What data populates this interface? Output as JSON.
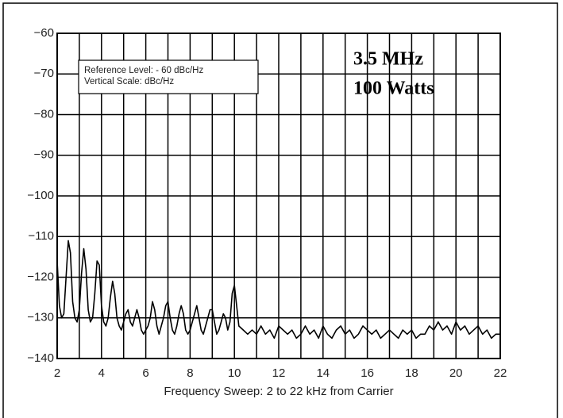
{
  "chart_data": {
    "type": "line",
    "xlabel": "Frequency Sweep: 2 to 22 kHz from Carrier",
    "annotations": [
      "3.5 MHz",
      "100 Watts"
    ],
    "info_box": [
      "Reference Level: - 60 dBc/Hz",
      "Vertical Scale: dBc/Hz"
    ],
    "color": "#000000",
    "grid": true,
    "xlim": [
      2,
      22
    ],
    "ylim": [
      -140,
      -60
    ],
    "xticks": [
      2,
      4,
      6,
      8,
      10,
      12,
      14,
      16,
      18,
      20,
      22
    ],
    "x_minor_ticks": [
      3,
      5,
      7,
      9,
      11,
      13,
      15,
      17,
      19,
      21
    ],
    "yticks": [
      {
        "value": -60,
        "label": "−60"
      },
      {
        "value": -70,
        "label": "−70"
      },
      {
        "value": -80,
        "label": "−80"
      },
      {
        "value": -90,
        "label": "−90"
      },
      {
        "value": -100,
        "label": "−100"
      },
      {
        "value": -110,
        "label": "−110"
      },
      {
        "value": -120,
        "label": "−120"
      },
      {
        "value": -130,
        "label": "−130"
      },
      {
        "value": -140,
        "label": "−140"
      }
    ],
    "x": [
      2.0,
      2.1,
      2.2,
      2.3,
      2.4,
      2.5,
      2.6,
      2.7,
      2.8,
      2.9,
      3.0,
      3.1,
      3.2,
      3.3,
      3.4,
      3.5,
      3.6,
      3.7,
      3.8,
      3.9,
      4.0,
      4.1,
      4.2,
      4.3,
      4.4,
      4.5,
      4.6,
      4.7,
      4.8,
      4.9,
      5.0,
      5.1,
      5.2,
      5.3,
      5.4,
      5.5,
      5.6,
      5.7,
      5.8,
      5.9,
      6.0,
      6.1,
      6.2,
      6.3,
      6.4,
      6.5,
      6.6,
      6.7,
      6.8,
      6.9,
      7.0,
      7.1,
      7.2,
      7.3,
      7.4,
      7.5,
      7.6,
      7.7,
      7.8,
      7.9,
      8.0,
      8.1,
      8.2,
      8.3,
      8.4,
      8.5,
      8.6,
      8.7,
      8.8,
      8.9,
      9.0,
      9.1,
      9.2,
      9.3,
      9.4,
      9.5,
      9.6,
      9.7,
      9.8,
      9.9,
      10.0,
      10.2,
      10.4,
      10.6,
      10.8,
      11.0,
      11.2,
      11.4,
      11.6,
      11.8,
      12.0,
      12.2,
      12.4,
      12.6,
      12.8,
      13.0,
      13.2,
      13.4,
      13.6,
      13.8,
      14.0,
      14.2,
      14.4,
      14.6,
      14.8,
      15.0,
      15.2,
      15.4,
      15.6,
      15.8,
      16.0,
      16.2,
      16.4,
      16.6,
      16.8,
      17.0,
      17.2,
      17.4,
      17.6,
      17.8,
      18.0,
      18.2,
      18.4,
      18.6,
      18.8,
      19.0,
      19.2,
      19.4,
      19.6,
      19.8,
      20.0,
      20.2,
      20.4,
      20.6,
      20.8,
      21.0,
      21.2,
      21.4,
      21.6,
      21.8,
      22.0
    ],
    "values": [
      -116,
      -127,
      -130,
      -129,
      -120,
      -111,
      -114,
      -126,
      -130,
      -131,
      -128,
      -119,
      -113,
      -118,
      -128,
      -131,
      -130,
      -124,
      -116,
      -117,
      -127,
      -131,
      -132,
      -130,
      -125,
      -121,
      -124,
      -130,
      -132,
      -133,
      -131,
      -129,
      -128,
      -131,
      -132,
      -130,
      -128,
      -130,
      -133,
      -134,
      -133,
      -132,
      -130,
      -126,
      -128,
      -132,
      -134,
      -132,
      -130,
      -127,
      -126,
      -130,
      -133,
      -134,
      -132,
      -129,
      -127,
      -129,
      -133,
      -134,
      -133,
      -131,
      -129,
      -127,
      -130,
      -133,
      -134,
      -132,
      -130,
      -128,
      -128,
      -131,
      -134,
      -133,
      -131,
      -129,
      -130,
      -133,
      -131,
      -124,
      -122,
      -132,
      -133,
      -134,
      -133,
      -134,
      -132,
      -134,
      -133,
      -135,
      -132,
      -133,
      -134,
      -133,
      -135,
      -134,
      -132,
      -134,
      -133,
      -135,
      -132,
      -134,
      -135,
      -133,
      -132,
      -134,
      -133,
      -135,
      -134,
      -132,
      -133,
      -134,
      -133,
      -135,
      -134,
      -133,
      -134,
      -135,
      -133,
      -134,
      -133,
      -135,
      -134,
      -134,
      -132,
      -133,
      -131,
      -133,
      -132,
      -134,
      -131,
      -133,
      -132,
      -134,
      -133,
      -132,
      -134,
      -133,
      -135,
      -134,
      -134
    ]
  }
}
